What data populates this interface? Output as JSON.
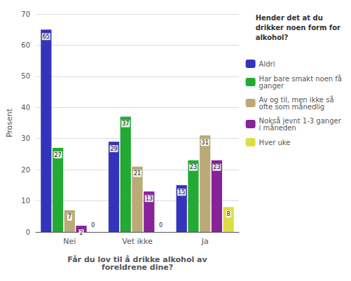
{
  "chart_data": {
    "type": "bar",
    "categories": [
      "Nei",
      "Vet ikke",
      "Ja"
    ],
    "series": [
      {
        "name": "Aldri",
        "color": "#3333bb",
        "values": [
          65,
          29,
          15
        ]
      },
      {
        "name": "Har bare smakt noen få\nganger",
        "color": "#22aa33",
        "values": [
          27,
          37,
          23
        ]
      },
      {
        "name": "Av og til, men ikke så\nofte som månedlig",
        "color": "#bbaa77",
        "values": [
          7,
          21,
          31
        ]
      },
      {
        "name": "Nokså jevnt 1-3 ganger\ni måneden",
        "color": "#882299",
        "values": [
          2,
          13,
          23
        ]
      },
      {
        "name": "Hver uke",
        "color": "#dddd44",
        "values": [
          0,
          0,
          8
        ]
      }
    ],
    "xlabel": "Får du lov til å drikke alkohol av\nforeldrene dine?",
    "ylabel": "Prosent",
    "legend_title": "Hender det at du\ndrikker noen form for\nalkohol?",
    "ylim": [
      0,
      70
    ],
    "yticks": [
      0,
      10,
      20,
      30,
      40,
      50,
      60,
      70
    ],
    "grid": true,
    "legend": "right",
    "data_labels": true
  }
}
